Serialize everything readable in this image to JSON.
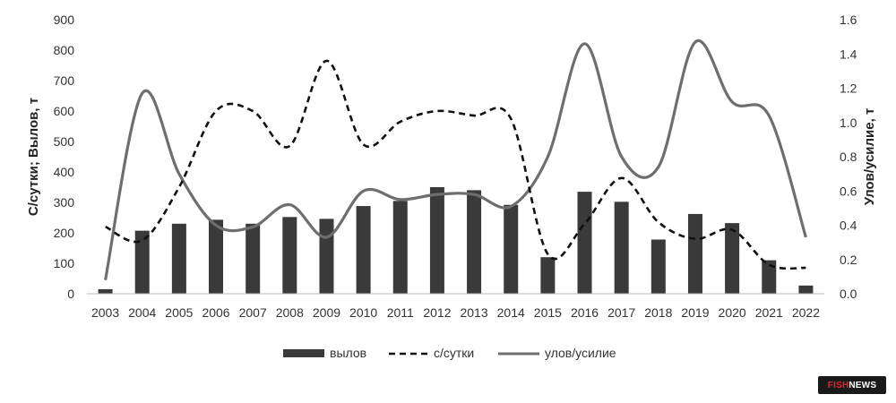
{
  "chart_data": {
    "type": "bar",
    "categories": [
      "2003",
      "2004",
      "2005",
      "2006",
      "2007",
      "2008",
      "2009",
      "2010",
      "2011",
      "2012",
      "2013",
      "2014",
      "2015",
      "2016",
      "2017",
      "2018",
      "2019",
      "2020",
      "2021",
      "2022"
    ],
    "series": [
      {
        "name": "вылов",
        "type": "bar",
        "axis": "left",
        "color": "#3a3a3a",
        "values": [
          15,
          207,
          230,
          243,
          230,
          252,
          246,
          288,
          305,
          350,
          340,
          292,
          120,
          335,
          302,
          178,
          262,
          232,
          110,
          27
        ]
      },
      {
        "name": "с/сутки",
        "type": "line",
        "axis": "left",
        "style": "dashed",
        "color": "#111111",
        "values": [
          220,
          175,
          350,
          600,
          600,
          485,
          765,
          490,
          565,
          600,
          585,
          575,
          130,
          230,
          380,
          235,
          180,
          210,
          95,
          85
        ]
      },
      {
        "name": "улов/усилие",
        "type": "line",
        "axis": "right",
        "style": "solid",
        "color": "#6e6e6e",
        "values": [
          0.08,
          1.17,
          0.7,
          0.4,
          0.39,
          0.52,
          0.33,
          0.6,
          0.55,
          0.58,
          0.58,
          0.51,
          0.8,
          1.46,
          0.8,
          0.74,
          1.47,
          1.12,
          1.04,
          0.33
        ]
      }
    ],
    "ylabel": "С/сутки; Вылов, т",
    "y2label": "Улов/усилие, т",
    "ylim": [
      0,
      900
    ],
    "y2lim": [
      0,
      1.6
    ],
    "yticks": [
      "0",
      "100",
      "200",
      "300",
      "400",
      "500",
      "600",
      "700",
      "800",
      "900"
    ],
    "y2ticks": [
      "0.0",
      "0.2",
      "0.4",
      "0.6",
      "0.8",
      "1.0",
      "1.2",
      "1.4",
      "1.6"
    ],
    "grid": false,
    "legend_position": "bottom"
  },
  "logo": {
    "part1": "FISH",
    "part2": "NEWS"
  }
}
